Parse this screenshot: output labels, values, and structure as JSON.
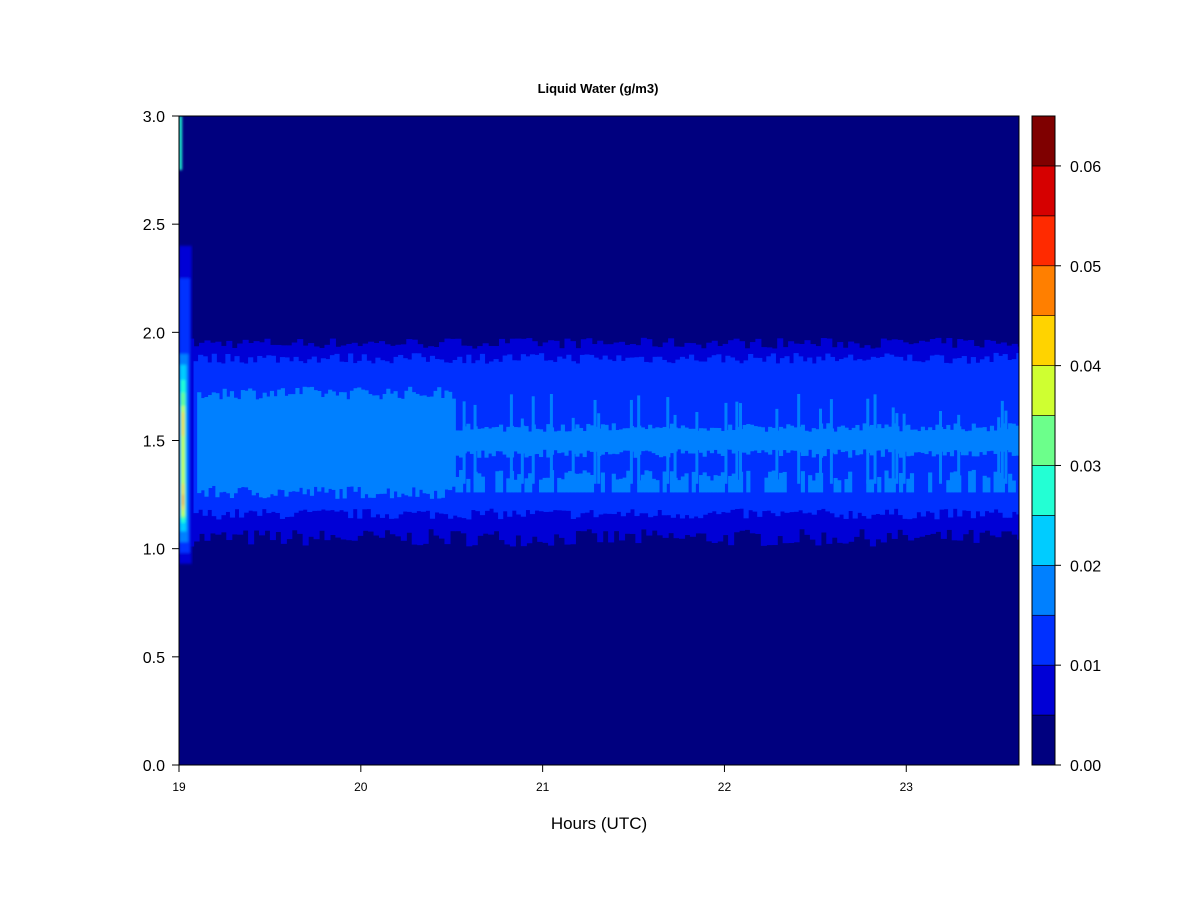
{
  "chart_data": {
    "type": "heatmap",
    "title": "Liquid Water (g/m3)",
    "xlabel": "Hours (UTC)",
    "ylabel": "",
    "xlim": [
      19,
      23.62
    ],
    "ylim": [
      0,
      3
    ],
    "x_ticks": [
      "19",
      "20",
      "21",
      "22",
      "23"
    ],
    "y_ticks": [
      "0.0",
      "0.5",
      "1.0",
      "1.5",
      "2.0",
      "2.5",
      "3.0"
    ],
    "colorbar": {
      "range": [
        0,
        0.065
      ],
      "tick_labels": [
        "0.00",
        "0.01",
        "0.02",
        "0.03",
        "0.04",
        "0.05",
        "0.06"
      ],
      "colors": [
        "#00007f",
        "#0000d6",
        "#0030ff",
        "#0080ff",
        "#00ccff",
        "#23ffd4",
        "#6cff8b",
        "#cfff31",
        "#ffd300",
        "#ff7f00",
        "#ff2a00",
        "#d60000",
        "#7f0000"
      ]
    },
    "layers": [
      {
        "level": "0.00-0.005",
        "altitude_range": [
          0,
          3
        ],
        "hours": [
          19,
          23.62
        ]
      },
      {
        "level": "0.005-0.01",
        "altitude_range": [
          1.05,
          1.95
        ],
        "hours": [
          19.05,
          23.62
        ]
      },
      {
        "level": "0.01-0.015",
        "altitude_range": [
          1.15,
          1.9
        ],
        "hours": [
          19.05,
          23.62
        ]
      },
      {
        "level": "0.015-0.02",
        "altitude_range": [
          1.25,
          1.75
        ],
        "hours": [
          19.1,
          23.62
        ]
      },
      {
        "level": "peak",
        "altitude": 1.45,
        "hour": 19.03,
        "value": 0.045
      }
    ]
  }
}
